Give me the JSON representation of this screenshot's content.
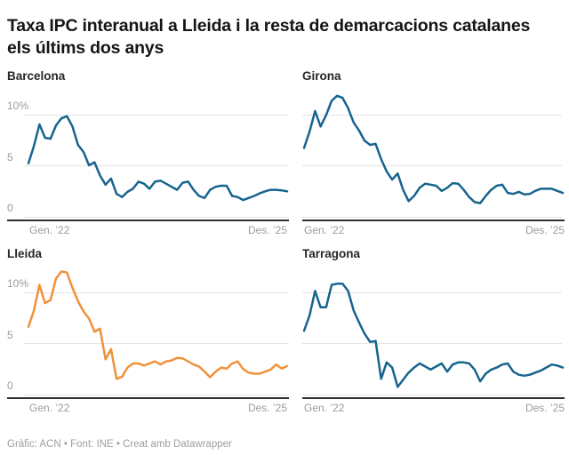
{
  "header": {
    "title": "Taxa IPC interanual a Lleida i la resta de demarcacions catalanes els últims dos anys"
  },
  "footer": {
    "credit": "Gràfic: ACN • Font: INE • Creat amb Datawrapper"
  },
  "colors": {
    "blue": "#17648e",
    "orange": "#f0913a",
    "grid": "#e4e4e4",
    "baseline": "#2f2f2f",
    "axis_text": "#9b9b9b",
    "title_text": "#151515",
    "footer_text": "#9e9e9e"
  },
  "axis": {
    "x_start_label": "Gen. ’22",
    "x_end_label": "Des. ’25"
  },
  "y_axis": {
    "range": [
      0,
      12.5
    ],
    "ticks": [
      {
        "value": 10,
        "label": "10%"
      },
      {
        "value": 5,
        "label": "5"
      },
      {
        "value": 0,
        "label": "0"
      }
    ]
  },
  "chart_data": [
    {
      "type": "line",
      "title": "Barcelona",
      "color_key": "blue",
      "unit": "%",
      "x_unit": "month",
      "x_range": [
        "Gen. 2022",
        "Des. 2025"
      ],
      "values": [
        5.2,
        6.9,
        9.0,
        7.7,
        7.6,
        8.9,
        9.6,
        9.8,
        8.8,
        7.0,
        6.3,
        5.0,
        5.3,
        4.0,
        3.1,
        3.7,
        2.2,
        1.9,
        2.4,
        2.7,
        3.4,
        3.2,
        2.7,
        3.4,
        3.5,
        3.2,
        2.9,
        2.6,
        3.3,
        3.4,
        2.6,
        2.0,
        1.8,
        2.6,
        2.9,
        3.0,
        3.0,
        2.0,
        1.9,
        1.6,
        1.8,
        2.0,
        2.25,
        2.45,
        2.6,
        2.6,
        2.55,
        2.45
      ]
    },
    {
      "type": "line",
      "title": "Girona",
      "color_key": "blue",
      "unit": "%",
      "x_unit": "month",
      "x_range": [
        "Gen. 2022",
        "Des. 2025"
      ],
      "values": [
        6.7,
        8.3,
        10.3,
        8.8,
        9.9,
        11.3,
        11.8,
        11.6,
        10.6,
        9.2,
        8.4,
        7.4,
        7.0,
        7.1,
        5.6,
        4.4,
        3.6,
        4.2,
        2.6,
        1.5,
        2.0,
        2.8,
        3.2,
        3.1,
        3.0,
        2.5,
        2.8,
        3.25,
        3.2,
        2.6,
        1.9,
        1.4,
        1.3,
        2.0,
        2.6,
        3.0,
        3.1,
        2.3,
        2.2,
        2.4,
        2.15,
        2.2,
        2.5,
        2.7,
        2.7,
        2.7,
        2.5,
        2.3
      ]
    },
    {
      "type": "line",
      "title": "Lleida",
      "color_key": "orange",
      "unit": "%",
      "x_unit": "month",
      "x_range": [
        "Gen. 2022",
        "Des. 2025"
      ],
      "values": [
        6.6,
        8.2,
        10.7,
        8.9,
        9.2,
        11.3,
        12.0,
        11.9,
        10.4,
        9.1,
        8.1,
        7.4,
        6.1,
        6.4,
        3.4,
        4.4,
        1.5,
        1.7,
        2.6,
        3.0,
        3.0,
        2.8,
        3.0,
        3.2,
        2.9,
        3.2,
        3.3,
        3.55,
        3.5,
        3.2,
        2.9,
        2.7,
        2.2,
        1.65,
        2.2,
        2.6,
        2.5,
        3.0,
        3.2,
        2.45,
        2.1,
        2.0,
        2.0,
        2.2,
        2.4,
        2.9,
        2.5,
        2.75
      ]
    },
    {
      "type": "line",
      "title": "Tarragona",
      "color_key": "blue",
      "unit": "%",
      "x_unit": "month",
      "x_range": [
        "Gen. 2022",
        "Des. 2025"
      ],
      "values": [
        6.2,
        7.7,
        10.1,
        8.5,
        8.5,
        10.7,
        10.8,
        10.8,
        10.1,
        8.2,
        7.0,
        5.9,
        5.1,
        5.2,
        1.5,
        3.1,
        2.6,
        0.7,
        1.4,
        2.1,
        2.6,
        3.0,
        2.7,
        2.4,
        2.7,
        3.0,
        2.2,
        2.9,
        3.1,
        3.1,
        3.0,
        2.4,
        1.25,
        2.0,
        2.4,
        2.6,
        2.9,
        3.0,
        2.2,
        1.9,
        1.8,
        1.9,
        2.1,
        2.3,
        2.6,
        2.9,
        2.8,
        2.6
      ]
    }
  ]
}
